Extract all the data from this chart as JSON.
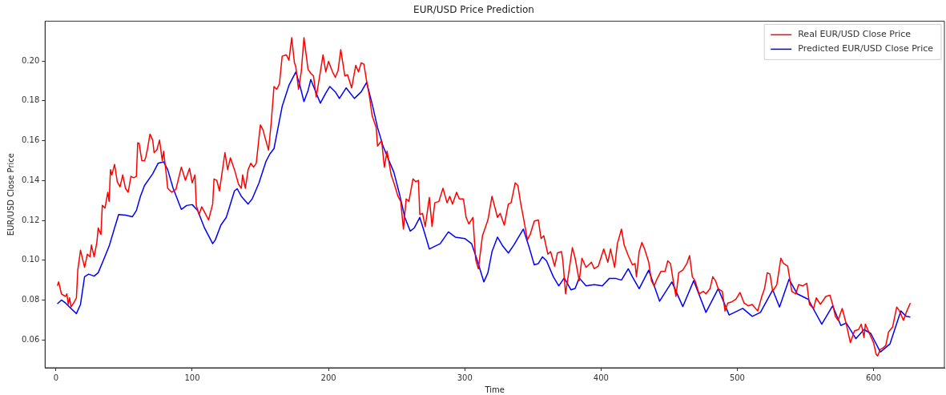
{
  "chart_data": {
    "type": "line",
    "title": "EUR/USD Price Prediction",
    "xlabel": "Time",
    "ylabel": "EUR/USD Close Price",
    "xlim": [
      -8,
      652
    ],
    "ylim": [
      0.046,
      0.22
    ],
    "xticks": [
      0,
      100,
      200,
      300,
      400,
      500,
      600
    ],
    "yticks": [
      {
        "value": 0.06,
        "label": "0.06"
      },
      {
        "value": 0.08,
        "label": "0.08"
      },
      {
        "value": 0.1,
        "label": "0.10"
      },
      {
        "value": 0.12,
        "label": "0.12"
      },
      {
        "value": 0.14,
        "label": "0.14"
      },
      {
        "value": 0.16,
        "label": "0.16"
      },
      {
        "value": 0.18,
        "label": "0.18"
      },
      {
        "value": 0.2,
        "label": "0.20"
      }
    ],
    "grid": false,
    "legend": "top right",
    "marker": "none",
    "line_style": "solid",
    "series": [
      {
        "name": "Real EUR/USD Close Price",
        "color": "#ff0000",
        "x": [
          1,
          2,
          4,
          7,
          8,
          9,
          10,
          11,
          13,
          15,
          16,
          18,
          21,
          23,
          25,
          26,
          28,
          30,
          31,
          33,
          34,
          36,
          38,
          39,
          40,
          41,
          43,
          45,
          47,
          49,
          51,
          53,
          55,
          57,
          59,
          60,
          61,
          63,
          65,
          66,
          67,
          69,
          71,
          72,
          74,
          76,
          78,
          79,
          81,
          82,
          85,
          88,
          92,
          95,
          98,
          100,
          102,
          103,
          105,
          107,
          109,
          112,
          115,
          116,
          118,
          120,
          124,
          126,
          128,
          131,
          134,
          136,
          137,
          139,
          141,
          143,
          145,
          147,
          150,
          152,
          153,
          156,
          158,
          160,
          161,
          162,
          164,
          166,
          169,
          171,
          173,
          175,
          176,
          178,
          180,
          182,
          185,
          187,
          189,
          191,
          194,
          196,
          198,
          200,
          203,
          205,
          207,
          209,
          212,
          214,
          217,
          220,
          222,
          224,
          226,
          228,
          230,
          232,
          235,
          236,
          239,
          241,
          243,
          246,
          248,
          251,
          253,
          255,
          257,
          259,
          262,
          264,
          266,
          267,
          269,
          271,
          274,
          276,
          278,
          281,
          284,
          287,
          289,
          291,
          294,
          296,
          299,
          301,
          303,
          306,
          308,
          310,
          313,
          317,
          320,
          324,
          326,
          329,
          332,
          334,
          337,
          339,
          341,
          343,
          346,
          348,
          351,
          354,
          356,
          358,
          361,
          363,
          366,
          368,
          371,
          372,
          374,
          376,
          379,
          381,
          384,
          386,
          389,
          393,
          395,
          398,
          402,
          405,
          407,
          410,
          412,
          415,
          417,
          420,
          423,
          425,
          426,
          428,
          430,
          432,
          435,
          437,
          439,
          441,
          444,
          447,
          449,
          451,
          453,
          455,
          457,
          460,
          463,
          465,
          467,
          469,
          472,
          475,
          477,
          480,
          482,
          484,
          486,
          489,
          491,
          493,
          496,
          499,
          502,
          505,
          508,
          511,
          515,
          518,
          520,
          522,
          524,
          526,
          529,
          532,
          534,
          537,
          540,
          543,
          545,
          548,
          551,
          553,
          556,
          558,
          561,
          565,
          568,
          570,
          572,
          574,
          577,
          580,
          583,
          586,
          589,
          591,
          593,
          594,
          597,
          600,
          602,
          603,
          605,
          607,
          609,
          611,
          614,
          617,
          619,
          622,
          624,
          627
        ],
        "values": [
          0.0871,
          0.0891,
          0.0831,
          0.0818,
          0.0831,
          0.0778,
          0.0811,
          0.0765,
          0.0785,
          0.0811,
          0.095,
          0.105,
          0.0964,
          0.103,
          0.1017,
          0.1076,
          0.1017,
          0.1089,
          0.1162,
          0.1129,
          0.1275,
          0.1262,
          0.1341,
          0.1295,
          0.1454,
          0.1428,
          0.1481,
          0.1394,
          0.1368,
          0.1428,
          0.1361,
          0.1341,
          0.1421,
          0.1414,
          0.1421,
          0.1589,
          0.1587,
          0.15,
          0.15,
          0.152,
          0.1553,
          0.1633,
          0.1603,
          0.154,
          0.1553,
          0.1603,
          0.15,
          0.1547,
          0.1428,
          0.1361,
          0.1341,
          0.1355,
          0.1467,
          0.1401,
          0.1461,
          0.1388,
          0.1428,
          0.1275,
          0.1229,
          0.1268,
          0.1242,
          0.1202,
          0.1282,
          0.1408,
          0.1401,
          0.1348,
          0.154,
          0.1454,
          0.1514,
          0.1454,
          0.1381,
          0.1361,
          0.1428,
          0.1361,
          0.1454,
          0.1487,
          0.1467,
          0.1487,
          0.1679,
          0.1653,
          0.1626,
          0.1553,
          0.1693,
          0.1872,
          0.1865,
          0.1858,
          0.1885,
          0.2024,
          0.2031,
          0.2004,
          0.2117,
          0.1991,
          0.1971,
          0.1858,
          0.1945,
          0.2117,
          0.1958,
          0.1938,
          0.1925,
          0.1819,
          0.1945,
          0.2031,
          0.1945,
          0.1998,
          0.1945,
          0.1918,
          0.1951,
          0.2057,
          0.1925,
          0.1931,
          0.1865,
          0.1978,
          0.1945,
          0.1991,
          0.1984,
          0.1898,
          0.1825,
          0.1726,
          0.1666,
          0.1573,
          0.16,
          0.1467,
          0.1547,
          0.1428,
          0.1388,
          0.1321,
          0.1295,
          0.1156,
          0.1308,
          0.1295,
          0.1408,
          0.1394,
          0.1401,
          0.1229,
          0.1235,
          0.1169,
          0.1315,
          0.1169,
          0.1288,
          0.1295,
          0.1361,
          0.1288,
          0.1321,
          0.1282,
          0.1341,
          0.1308,
          0.1308,
          0.1215,
          0.1182,
          0.1215,
          0.1003,
          0.0957,
          0.1123,
          0.1202,
          0.1321,
          0.1215,
          0.1235,
          0.1176,
          0.1282,
          0.1288,
          0.1388,
          0.1375,
          0.1288,
          0.1215,
          0.1103,
          0.1129,
          0.1196,
          0.1202,
          0.1109,
          0.1123,
          0.103,
          0.1043,
          0.097,
          0.1036,
          0.1043,
          0.0997,
          0.0831,
          0.0924,
          0.1063,
          0.101,
          0.0897,
          0.101,
          0.0964,
          0.099,
          0.0957,
          0.097,
          0.1056,
          0.099,
          0.1056,
          0.0964,
          0.1083,
          0.1156,
          0.1076,
          0.1023,
          0.0977,
          0.0983,
          0.0917,
          0.1043,
          0.1089,
          0.1056,
          0.099,
          0.0897,
          0.0871,
          0.0904,
          0.0944,
          0.0944,
          0.0997,
          0.0983,
          0.0897,
          0.0818,
          0.0937,
          0.095,
          0.0983,
          0.1023,
          0.0917,
          0.0897,
          0.0831,
          0.0844,
          0.0831,
          0.0857,
          0.0917,
          0.0897,
          0.0857,
          0.0844,
          0.0745,
          0.0785,
          0.0791,
          0.0804,
          0.0838,
          0.0785,
          0.0771,
          0.0778,
          0.0745,
          0.0818,
          0.0857,
          0.0937,
          0.093,
          0.0844,
          0.0877,
          0.101,
          0.0983,
          0.097,
          0.0844,
          0.0831,
          0.0877,
          0.0871,
          0.0884,
          0.0778,
          0.0758,
          0.0811,
          0.0778,
          0.0818,
          0.0824,
          0.0778,
          0.0718,
          0.0698,
          0.0758,
          0.0679,
          0.0586,
          0.0645,
          0.0652,
          0.0679,
          0.0612,
          0.0679,
          0.0632,
          0.0586,
          0.0526,
          0.0519,
          0.0553,
          0.0559,
          0.0572,
          0.0639,
          0.0665,
          0.0765,
          0.0745,
          0.0698,
          0.0738,
          0.0785
        ]
      },
      {
        "name": "Predicted EUR/USD Close Price",
        "color": "#0000ff",
        "x": [
          1,
          4,
          7,
          11,
          15,
          18,
          21,
          24,
          28,
          31,
          35,
          39,
          43,
          46,
          51,
          56,
          59,
          62,
          65,
          71,
          75,
          79,
          82,
          86,
          92,
          96,
          100,
          104,
          109,
          115,
          117,
          121,
          125,
          131,
          133,
          136,
          141,
          144,
          149,
          154,
          157,
          160,
          163,
          166,
          171,
          176,
          179,
          182,
          185,
          187,
          191,
          194,
          198,
          201,
          205,
          208,
          213,
          219,
          224,
          228,
          232,
          236,
          240,
          244,
          248,
          252,
          256,
          260,
          263,
          267,
          270,
          274,
          278,
          282,
          288,
          293,
          300,
          305,
          309,
          314,
          317,
          320,
          324,
          328,
          332,
          336,
          343,
          347,
          351,
          354,
          357,
          360,
          365,
          369,
          373,
          378,
          381,
          384,
          389,
          395,
          401,
          406,
          411,
          415,
          420,
          423,
          428,
          435,
          443,
          452,
          460,
          468,
          477,
          486,
          494,
          504,
          511,
          517,
          526,
          531,
          538,
          544,
          552,
          562,
          570,
          576,
          580,
          587,
          593,
          598,
          605,
          612,
          620,
          624,
          627
        ],
        "values": [
          0.0781,
          0.08,
          0.0785,
          0.0758,
          0.0732,
          0.0778,
          0.0917,
          0.093,
          0.092,
          0.0937,
          0.1003,
          0.107,
          0.1162,
          0.1229,
          0.1226,
          0.1218,
          0.1249,
          0.1321,
          0.1375,
          0.1434,
          0.1487,
          0.1494,
          0.1454,
          0.1361,
          0.1255,
          0.1275,
          0.1279,
          0.1249,
          0.1162,
          0.1083,
          0.1103,
          0.1176,
          0.1215,
          0.1348,
          0.1359,
          0.1321,
          0.1282,
          0.1308,
          0.1388,
          0.1494,
          0.1534,
          0.156,
          0.1666,
          0.1772,
          0.1878,
          0.1945,
          0.1878,
          0.1796,
          0.1852,
          0.1907,
          0.1839,
          0.1788,
          0.1839,
          0.1872,
          0.1845,
          0.1812,
          0.1865,
          0.1812,
          0.1845,
          0.1892,
          0.1786,
          0.1666,
          0.1573,
          0.1507,
          0.1441,
          0.1335,
          0.1215,
          0.1146,
          0.1162,
          0.1215,
          0.1149,
          0.1056,
          0.107,
          0.1083,
          0.1142,
          0.1116,
          0.1109,
          0.1083,
          0.1003,
          0.0891,
          0.0937,
          0.1043,
          0.1116,
          0.107,
          0.1036,
          0.1076,
          0.1156,
          0.107,
          0.0977,
          0.0983,
          0.1017,
          0.0997,
          0.0917,
          0.0871,
          0.0911,
          0.0851,
          0.0858,
          0.0911,
          0.0871,
          0.0877,
          0.0871,
          0.0908,
          0.0908,
          0.09,
          0.0957,
          0.0917,
          0.0857,
          0.095,
          0.0794,
          0.0891,
          0.0767,
          0.0897,
          0.0738,
          0.0857,
          0.0725,
          0.0758,
          0.0718,
          0.0738,
          0.0851,
          0.0765,
          0.0904,
          0.0831,
          0.0804,
          0.0679,
          0.0771,
          0.0672,
          0.0685,
          0.0606,
          0.0652,
          0.0632,
          0.0539,
          0.0579,
          0.0745,
          0.0718,
          0.0714
        ]
      }
    ]
  }
}
